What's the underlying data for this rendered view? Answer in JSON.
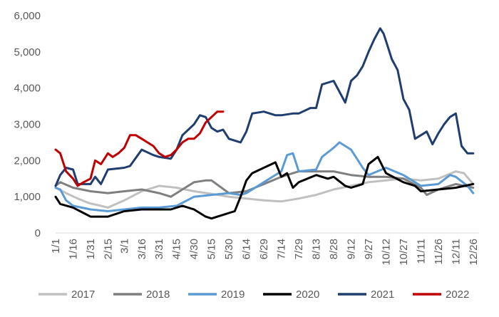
{
  "chart_data": {
    "type": "line",
    "title": "",
    "xlabel": "",
    "ylabel": "",
    "ylim": [
      0,
      6000
    ],
    "y_ticks": [
      0,
      1000,
      2000,
      3000,
      4000,
      5000,
      6000
    ],
    "y_tick_labels": [
      "0",
      "1,000",
      "2,000",
      "3,000",
      "4,000",
      "5,000",
      "6,000"
    ],
    "x_range": [
      1,
      365
    ],
    "x_ticks": [
      {
        "label": "1/1",
        "day": 1
      },
      {
        "label": "1/16",
        "day": 16
      },
      {
        "label": "1/31",
        "day": 31
      },
      {
        "label": "2/15",
        "day": 46
      },
      {
        "label": "3/1",
        "day": 60
      },
      {
        "label": "3/16",
        "day": 75
      },
      {
        "label": "3/31",
        "day": 90
      },
      {
        "label": "4/15",
        "day": 105
      },
      {
        "label": "4/30",
        "day": 120
      },
      {
        "label": "5/15",
        "day": 135
      },
      {
        "label": "5/30",
        "day": 150
      },
      {
        "label": "6/14",
        "day": 165
      },
      {
        "label": "6/29",
        "day": 180
      },
      {
        "label": "7/14",
        "day": 195
      },
      {
        "label": "7/29",
        "day": 210
      },
      {
        "label": "8/13",
        "day": 225
      },
      {
        "label": "8/28",
        "day": 240
      },
      {
        "label": "9/12",
        "day": 255
      },
      {
        "label": "9/27",
        "day": 270
      },
      {
        "label": "10/12",
        "day": 285
      },
      {
        "label": "10/27",
        "day": 300
      },
      {
        "label": "11/11",
        "day": 315
      },
      {
        "label": "11/26",
        "day": 330
      },
      {
        "label": "12/11",
        "day": 345
      },
      {
        "label": "12/26",
        "day": 360
      }
    ],
    "grid": false,
    "legend": "bottom",
    "series": [
      {
        "name": "2017",
        "color": "#c0c0c0",
        "points": [
          [
            1,
            1250
          ],
          [
            10,
            1100
          ],
          [
            20,
            950
          ],
          [
            30,
            820
          ],
          [
            40,
            750
          ],
          [
            46,
            700
          ],
          [
            60,
            900
          ],
          [
            75,
            1150
          ],
          [
            90,
            1300
          ],
          [
            105,
            1250
          ],
          [
            120,
            1150
          ],
          [
            135,
            1080
          ],
          [
            150,
            1000
          ],
          [
            165,
            950
          ],
          [
            180,
            900
          ],
          [
            195,
            870
          ],
          [
            210,
            950
          ],
          [
            225,
            1050
          ],
          [
            240,
            1200
          ],
          [
            255,
            1300
          ],
          [
            270,
            1400
          ],
          [
            285,
            1450
          ],
          [
            300,
            1500
          ],
          [
            315,
            1450
          ],
          [
            330,
            1500
          ],
          [
            345,
            1700
          ],
          [
            352,
            1650
          ],
          [
            360,
            1350
          ]
        ]
      },
      {
        "name": "2018",
        "color": "#7f7f7f",
        "points": [
          [
            1,
            1300
          ],
          [
            5,
            1400
          ],
          [
            16,
            1250
          ],
          [
            31,
            1150
          ],
          [
            46,
            1100
          ],
          [
            60,
            1150
          ],
          [
            75,
            1200
          ],
          [
            90,
            1100
          ],
          [
            100,
            1000
          ],
          [
            105,
            1100
          ],
          [
            115,
            1300
          ],
          [
            120,
            1400
          ],
          [
            130,
            1450
          ],
          [
            135,
            1450
          ],
          [
            150,
            1100
          ],
          [
            165,
            1150
          ],
          [
            180,
            1350
          ],
          [
            195,
            1550
          ],
          [
            210,
            1700
          ],
          [
            225,
            1700
          ],
          [
            240,
            1700
          ],
          [
            255,
            1600
          ],
          [
            270,
            1550
          ],
          [
            285,
            1550
          ],
          [
            300,
            1500
          ],
          [
            315,
            1250
          ],
          [
            320,
            1050
          ],
          [
            330,
            1200
          ],
          [
            345,
            1350
          ],
          [
            360,
            1250
          ]
        ]
      },
      {
        "name": "2019",
        "color": "#5b9bd5",
        "points": [
          [
            1,
            1250
          ],
          [
            5,
            1200
          ],
          [
            10,
            900
          ],
          [
            16,
            750
          ],
          [
            31,
            650
          ],
          [
            46,
            600
          ],
          [
            60,
            650
          ],
          [
            75,
            700
          ],
          [
            90,
            700
          ],
          [
            105,
            750
          ],
          [
            120,
            1000
          ],
          [
            135,
            1050
          ],
          [
            150,
            1100
          ],
          [
            160,
            1050
          ],
          [
            165,
            1100
          ],
          [
            180,
            1400
          ],
          [
            195,
            1700
          ],
          [
            200,
            2150
          ],
          [
            205,
            2200
          ],
          [
            210,
            1700
          ],
          [
            225,
            1750
          ],
          [
            230,
            2100
          ],
          [
            240,
            2350
          ],
          [
            245,
            2500
          ],
          [
            255,
            2300
          ],
          [
            265,
            1800
          ],
          [
            270,
            1600
          ],
          [
            285,
            1800
          ],
          [
            300,
            1600
          ],
          [
            315,
            1300
          ],
          [
            330,
            1350
          ],
          [
            340,
            1600
          ],
          [
            345,
            1550
          ],
          [
            355,
            1300
          ],
          [
            360,
            1100
          ]
        ]
      },
      {
        "name": "2020",
        "color": "#000000",
        "points": [
          [
            1,
            1000
          ],
          [
            5,
            800
          ],
          [
            16,
            700
          ],
          [
            25,
            550
          ],
          [
            31,
            450
          ],
          [
            46,
            450
          ],
          [
            60,
            600
          ],
          [
            75,
            650
          ],
          [
            90,
            650
          ],
          [
            100,
            650
          ],
          [
            110,
            750
          ],
          [
            120,
            650
          ],
          [
            130,
            450
          ],
          [
            135,
            400
          ],
          [
            145,
            500
          ],
          [
            150,
            550
          ],
          [
            155,
            600
          ],
          [
            160,
            1000
          ],
          [
            165,
            1450
          ],
          [
            170,
            1650
          ],
          [
            180,
            1800
          ],
          [
            190,
            1950
          ],
          [
            195,
            1550
          ],
          [
            200,
            1650
          ],
          [
            205,
            1250
          ],
          [
            210,
            1400
          ],
          [
            225,
            1600
          ],
          [
            235,
            1500
          ],
          [
            240,
            1550
          ],
          [
            250,
            1300
          ],
          [
            255,
            1250
          ],
          [
            260,
            1300
          ],
          [
            265,
            1350
          ],
          [
            270,
            1900
          ],
          [
            278,
            2100
          ],
          [
            285,
            1650
          ],
          [
            300,
            1400
          ],
          [
            310,
            1300
          ],
          [
            315,
            1150
          ],
          [
            330,
            1200
          ],
          [
            345,
            1250
          ],
          [
            360,
            1350
          ]
        ]
      },
      {
        "name": "2021",
        "color": "#1f3d6e",
        "points": [
          [
            1,
            1300
          ],
          [
            5,
            1600
          ],
          [
            10,
            1800
          ],
          [
            16,
            1750
          ],
          [
            20,
            1350
          ],
          [
            31,
            1350
          ],
          [
            35,
            1550
          ],
          [
            40,
            1350
          ],
          [
            46,
            1750
          ],
          [
            60,
            1800
          ],
          [
            65,
            1850
          ],
          [
            75,
            2300
          ],
          [
            85,
            2150
          ],
          [
            90,
            2100
          ],
          [
            100,
            2050
          ],
          [
            105,
            2300
          ],
          [
            110,
            2700
          ],
          [
            120,
            3000
          ],
          [
            125,
            3250
          ],
          [
            130,
            3200
          ],
          [
            135,
            2900
          ],
          [
            140,
            2800
          ],
          [
            145,
            2850
          ],
          [
            150,
            2600
          ],
          [
            160,
            2500
          ],
          [
            165,
            2800
          ],
          [
            170,
            3300
          ],
          [
            180,
            3350
          ],
          [
            190,
            3250
          ],
          [
            195,
            3250
          ],
          [
            205,
            3300
          ],
          [
            210,
            3300
          ],
          [
            220,
            3450
          ],
          [
            225,
            3450
          ],
          [
            230,
            4100
          ],
          [
            235,
            4150
          ],
          [
            240,
            4200
          ],
          [
            250,
            3600
          ],
          [
            255,
            4200
          ],
          [
            260,
            4350
          ],
          [
            265,
            4600
          ],
          [
            270,
            5000
          ],
          [
            275,
            5350
          ],
          [
            280,
            5650
          ],
          [
            283,
            5500
          ],
          [
            285,
            5300
          ],
          [
            290,
            4800
          ],
          [
            295,
            4500
          ],
          [
            300,
            3700
          ],
          [
            305,
            3400
          ],
          [
            310,
            2600
          ],
          [
            315,
            2700
          ],
          [
            320,
            2800
          ],
          [
            325,
            2450
          ],
          [
            330,
            2750
          ],
          [
            335,
            3000
          ],
          [
            340,
            3200
          ],
          [
            345,
            3300
          ],
          [
            350,
            2400
          ],
          [
            355,
            2200
          ],
          [
            360,
            2200
          ]
        ]
      },
      {
        "name": "2022",
        "color": "#c00000",
        "points": [
          [
            1,
            2300
          ],
          [
            5,
            2200
          ],
          [
            10,
            1700
          ],
          [
            16,
            1500
          ],
          [
            20,
            1300
          ],
          [
            25,
            1400
          ],
          [
            31,
            1500
          ],
          [
            35,
            2000
          ],
          [
            40,
            1900
          ],
          [
            46,
            2200
          ],
          [
            50,
            2100
          ],
          [
            55,
            2200
          ],
          [
            60,
            2350
          ],
          [
            65,
            2700
          ],
          [
            70,
            2700
          ],
          [
            75,
            2600
          ],
          [
            80,
            2500
          ],
          [
            85,
            2400
          ],
          [
            90,
            2200
          ],
          [
            95,
            2100
          ],
          [
            100,
            2150
          ],
          [
            105,
            2300
          ],
          [
            110,
            2500
          ],
          [
            115,
            2600
          ],
          [
            120,
            2600
          ],
          [
            125,
            2750
          ],
          [
            130,
            3050
          ],
          [
            135,
            3200
          ],
          [
            140,
            3350
          ],
          [
            145,
            3350
          ]
        ]
      }
    ]
  }
}
